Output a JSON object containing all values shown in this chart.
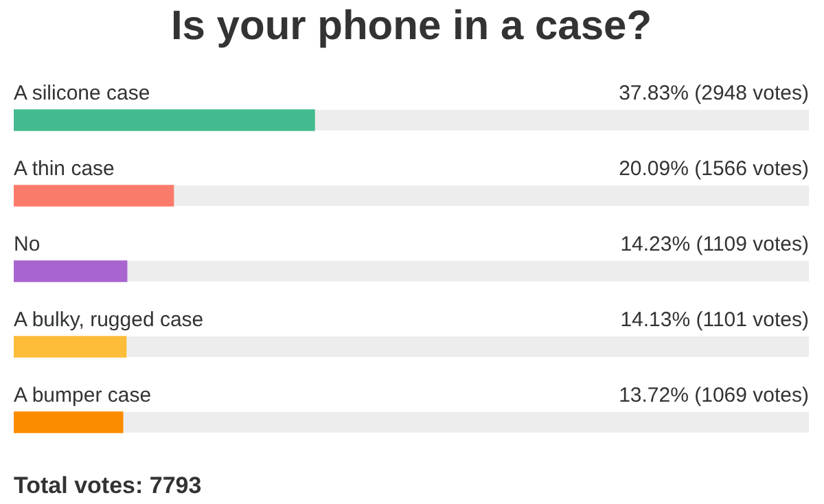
{
  "chart_data": {
    "type": "bar",
    "orientation": "horizontal",
    "title": "Is your phone in a case?",
    "categories": [
      "A silicone case",
      "A thin case",
      "No",
      "A bulky, rugged case",
      "A bumper case"
    ],
    "values": [
      37.83,
      20.09,
      14.23,
      14.13,
      13.72
    ],
    "colors": [
      "#44bb8f",
      "#fb7b6b",
      "#a865d0",
      "#fdbd38",
      "#fb8c00"
    ],
    "value_labels": [
      "37.83% (2948 votes)",
      "20.09% (1566 votes)",
      "14.23% (1109 votes)",
      "14.13% (1101 votes)",
      "13.72% (1069 votes)"
    ],
    "xlim": [
      0,
      100
    ],
    "tick_labels": "y",
    "legend": false,
    "annotations": [
      "Total votes: 7793"
    ]
  }
}
